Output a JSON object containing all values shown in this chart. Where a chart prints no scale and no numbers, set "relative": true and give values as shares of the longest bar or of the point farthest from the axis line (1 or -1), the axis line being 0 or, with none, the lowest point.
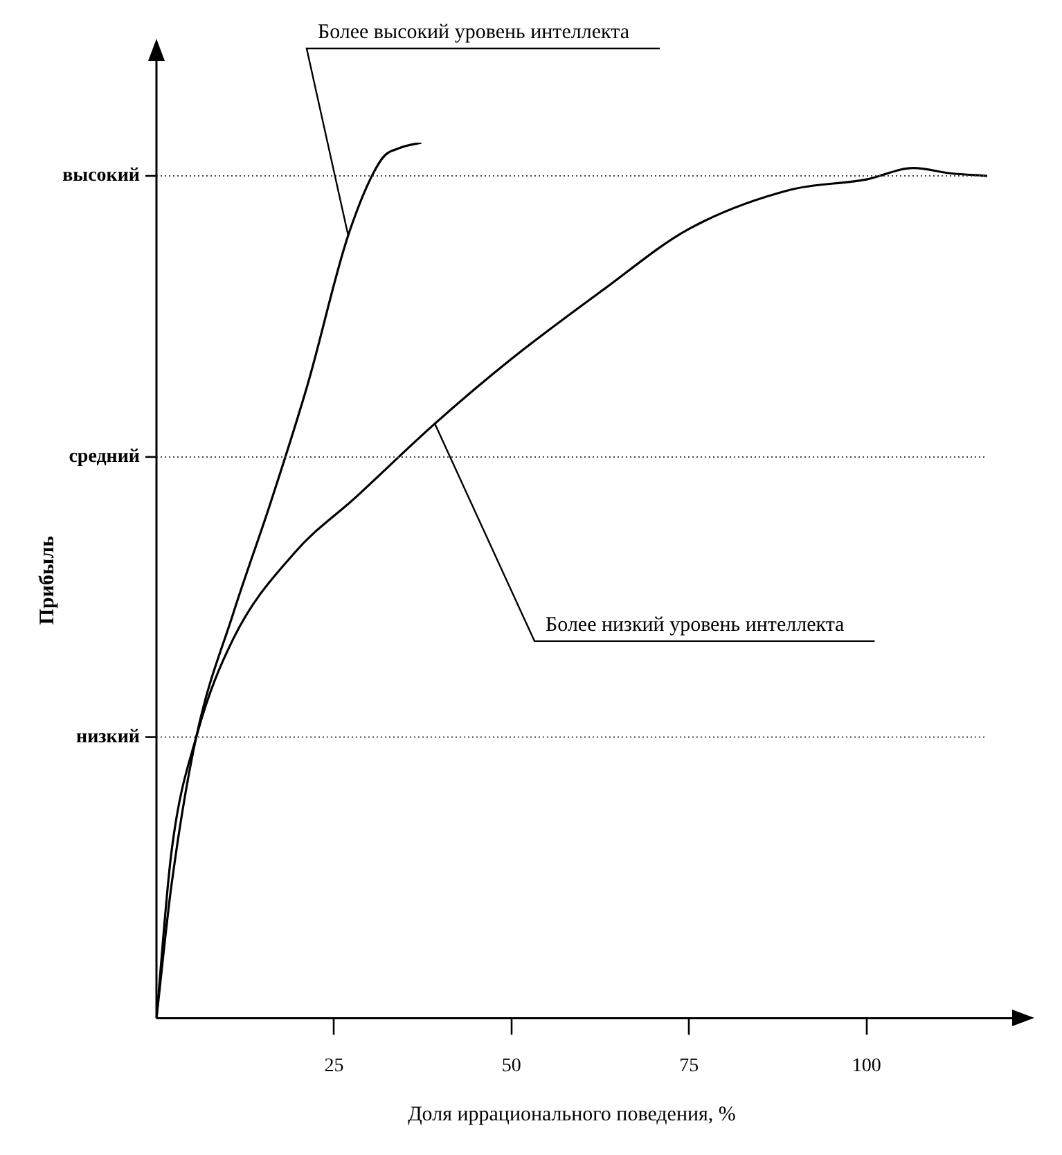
{
  "chart_data": {
    "type": "line",
    "xlabel": "Доля иррационального поведения, %",
    "ylabel": "Прибыль",
    "relative": true,
    "xlim": [
      0,
      117
    ],
    "xticks": [
      25,
      50,
      75,
      100
    ],
    "marker": "none",
    "line_style": "solid",
    "series": [
      {
        "color": "#000000",
        "x": [
          0,
          2.1,
          5.6,
          10.8,
          16.0,
          21.3,
          27.0,
          31.7,
          34.3,
          37.3
        ],
        "values": [
          0,
          0.151,
          0.321,
          0.462,
          0.587,
          0.724,
          0.894,
          0.981,
          0.994,
          1
        ]
      },
      {
        "color": "#000000",
        "x": [
          0,
          2.1,
          5.6,
          10.8,
          19.5,
          28.2,
          39.2,
          50,
          63.1,
          74.9,
          89.2,
          100,
          106.6,
          111.8,
          117
        ],
        "values": [
          0,
          0.189,
          0.321,
          0.433,
          0.532,
          0.596,
          0.679,
          0.753,
          0.833,
          0.901,
          0.946,
          0.958,
          0.971,
          0.965,
          0.962
        ]
      }
    ],
    "ref_lines": [
      {
        "axis": "y",
        "value": 0.321,
        "label": "низкий",
        "line_style": "dotted"
      },
      {
        "axis": "y",
        "value": 0.641,
        "label": "средний",
        "line_style": "dotted"
      },
      {
        "axis": "y",
        "value": 0.962,
        "label": "высокий",
        "line_style": "dotted"
      }
    ],
    "annotations": [
      {
        "text": "Более высокий уровень интеллекта",
        "x": 27.0,
        "y": 0.894
      },
      {
        "text": "Более низкий уровень интеллекта",
        "x": 39.2,
        "y": 0.679
      }
    ]
  }
}
